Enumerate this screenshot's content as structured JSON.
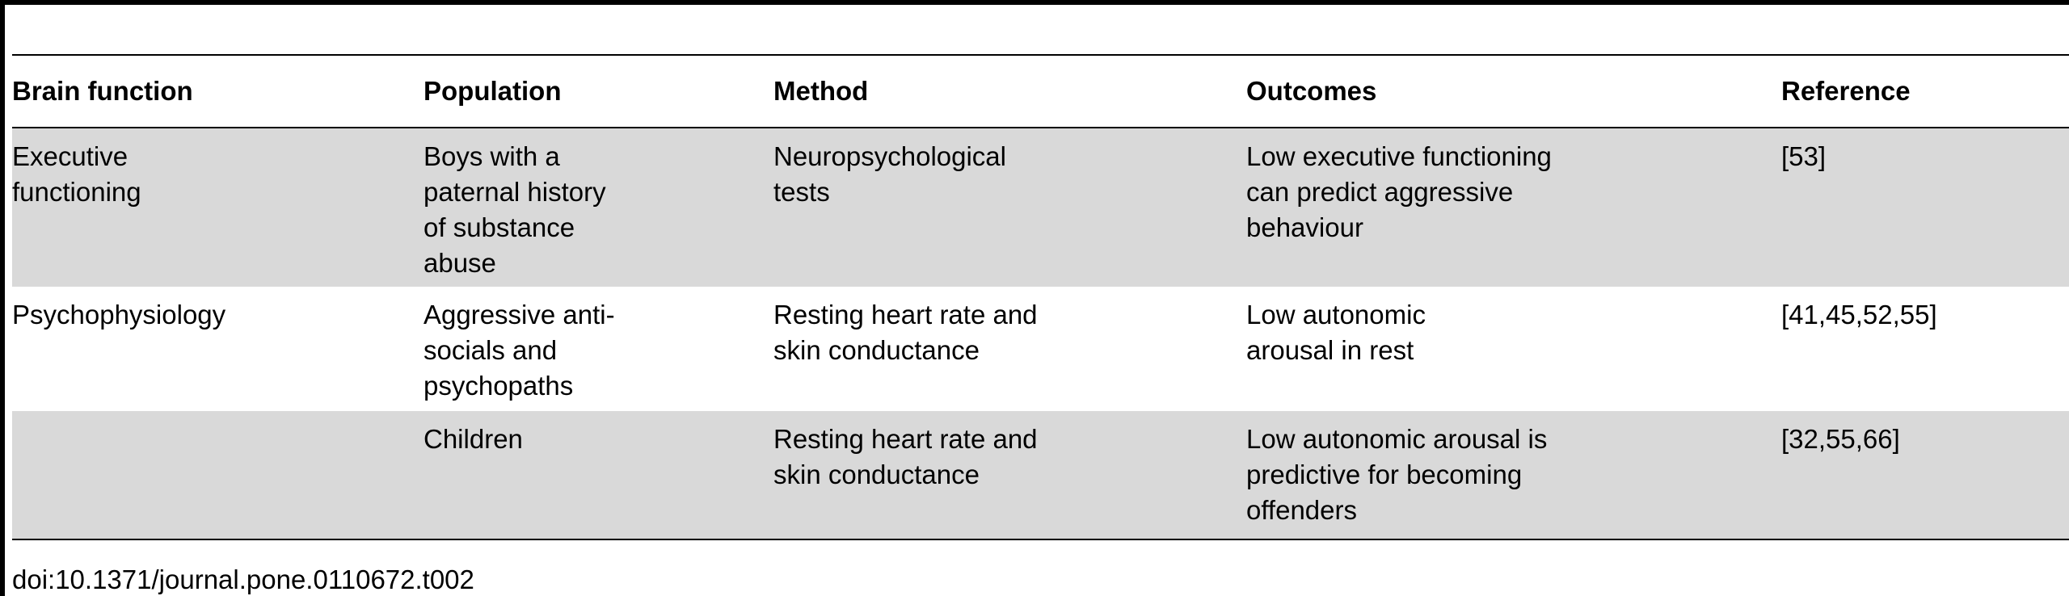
{
  "table": {
    "headers": [
      "Brain function",
      "Population",
      "Method",
      "Outcomes",
      "Reference"
    ],
    "rows": [
      {
        "brain_function": "Executive\nfunctioning",
        "population": "Boys with a\npaternal history\nof substance\nabuse",
        "method": "Neuropsychological\ntests",
        "outcomes": "Low executive functioning\ncan predict aggressive\nbehaviour",
        "reference": "[53]"
      },
      {
        "brain_function": "Psychophysiology",
        "population": "Aggressive anti-\nsocials and\npsychopaths",
        "method": "Resting heart rate and\nskin conductance",
        "outcomes": "Low autonomic\narousal in rest",
        "reference": "[41,45,52,55]"
      },
      {
        "brain_function": "",
        "population": "Children",
        "method": "Resting heart rate and\nskin conductance",
        "outcomes": "Low autonomic arousal is\npredictive for becoming\noffenders",
        "reference": "[32,55,66]"
      }
    ]
  },
  "footnote": "doi:10.1371/journal.pone.0110672.t002",
  "colors": {
    "shade": "#d9d9d9",
    "rule": "#000000"
  }
}
